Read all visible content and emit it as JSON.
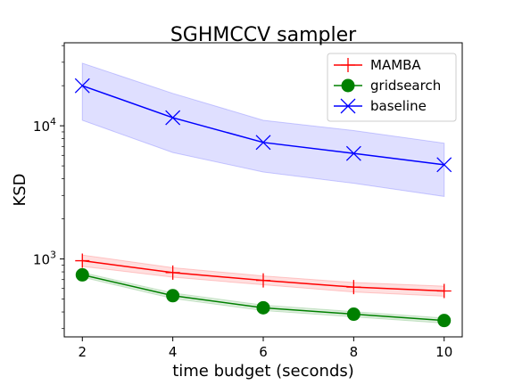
{
  "chart_data": {
    "type": "line",
    "title": "SGHMCCV sampler",
    "xlabel": "time budget (seconds)",
    "ylabel": "KSD",
    "yscale": "log",
    "xlim": [
      1.6,
      10.4
    ],
    "ylim": [
      260,
      42000
    ],
    "xticks": [
      2,
      4,
      6,
      8,
      10
    ],
    "yticks": [
      {
        "value": 1000,
        "base": "10",
        "exp": "3"
      },
      {
        "value": 10000,
        "base": "10",
        "exp": "4"
      }
    ],
    "legend_position": "top-right",
    "x": [
      2,
      4,
      6,
      8,
      10
    ],
    "series": [
      {
        "name": "MAMBA",
        "color": "#ff0000",
        "band_color": "#ff8080",
        "marker": "plus",
        "values": [
          970,
          790,
          690,
          615,
          575
        ],
        "lower": [
          880,
          730,
          640,
          565,
          525
        ],
        "upper": [
          1070,
          860,
          745,
          665,
          625
        ]
      },
      {
        "name": "gridsearch",
        "color": "#008000",
        "band_color": "#80c080",
        "marker": "circle",
        "values": [
          760,
          530,
          430,
          385,
          345
        ],
        "lower": [
          730,
          505,
          410,
          368,
          330
        ],
        "upper": [
          790,
          555,
          450,
          402,
          360
        ]
      },
      {
        "name": "baseline",
        "color": "#0000ff",
        "band_color": "#8080ff",
        "marker": "x",
        "values": [
          20000,
          11500,
          7500,
          6200,
          5100
        ],
        "lower": [
          11000,
          6300,
          4500,
          3700,
          2950
        ],
        "upper": [
          29500,
          17500,
          11000,
          9200,
          7400
        ]
      }
    ]
  }
}
